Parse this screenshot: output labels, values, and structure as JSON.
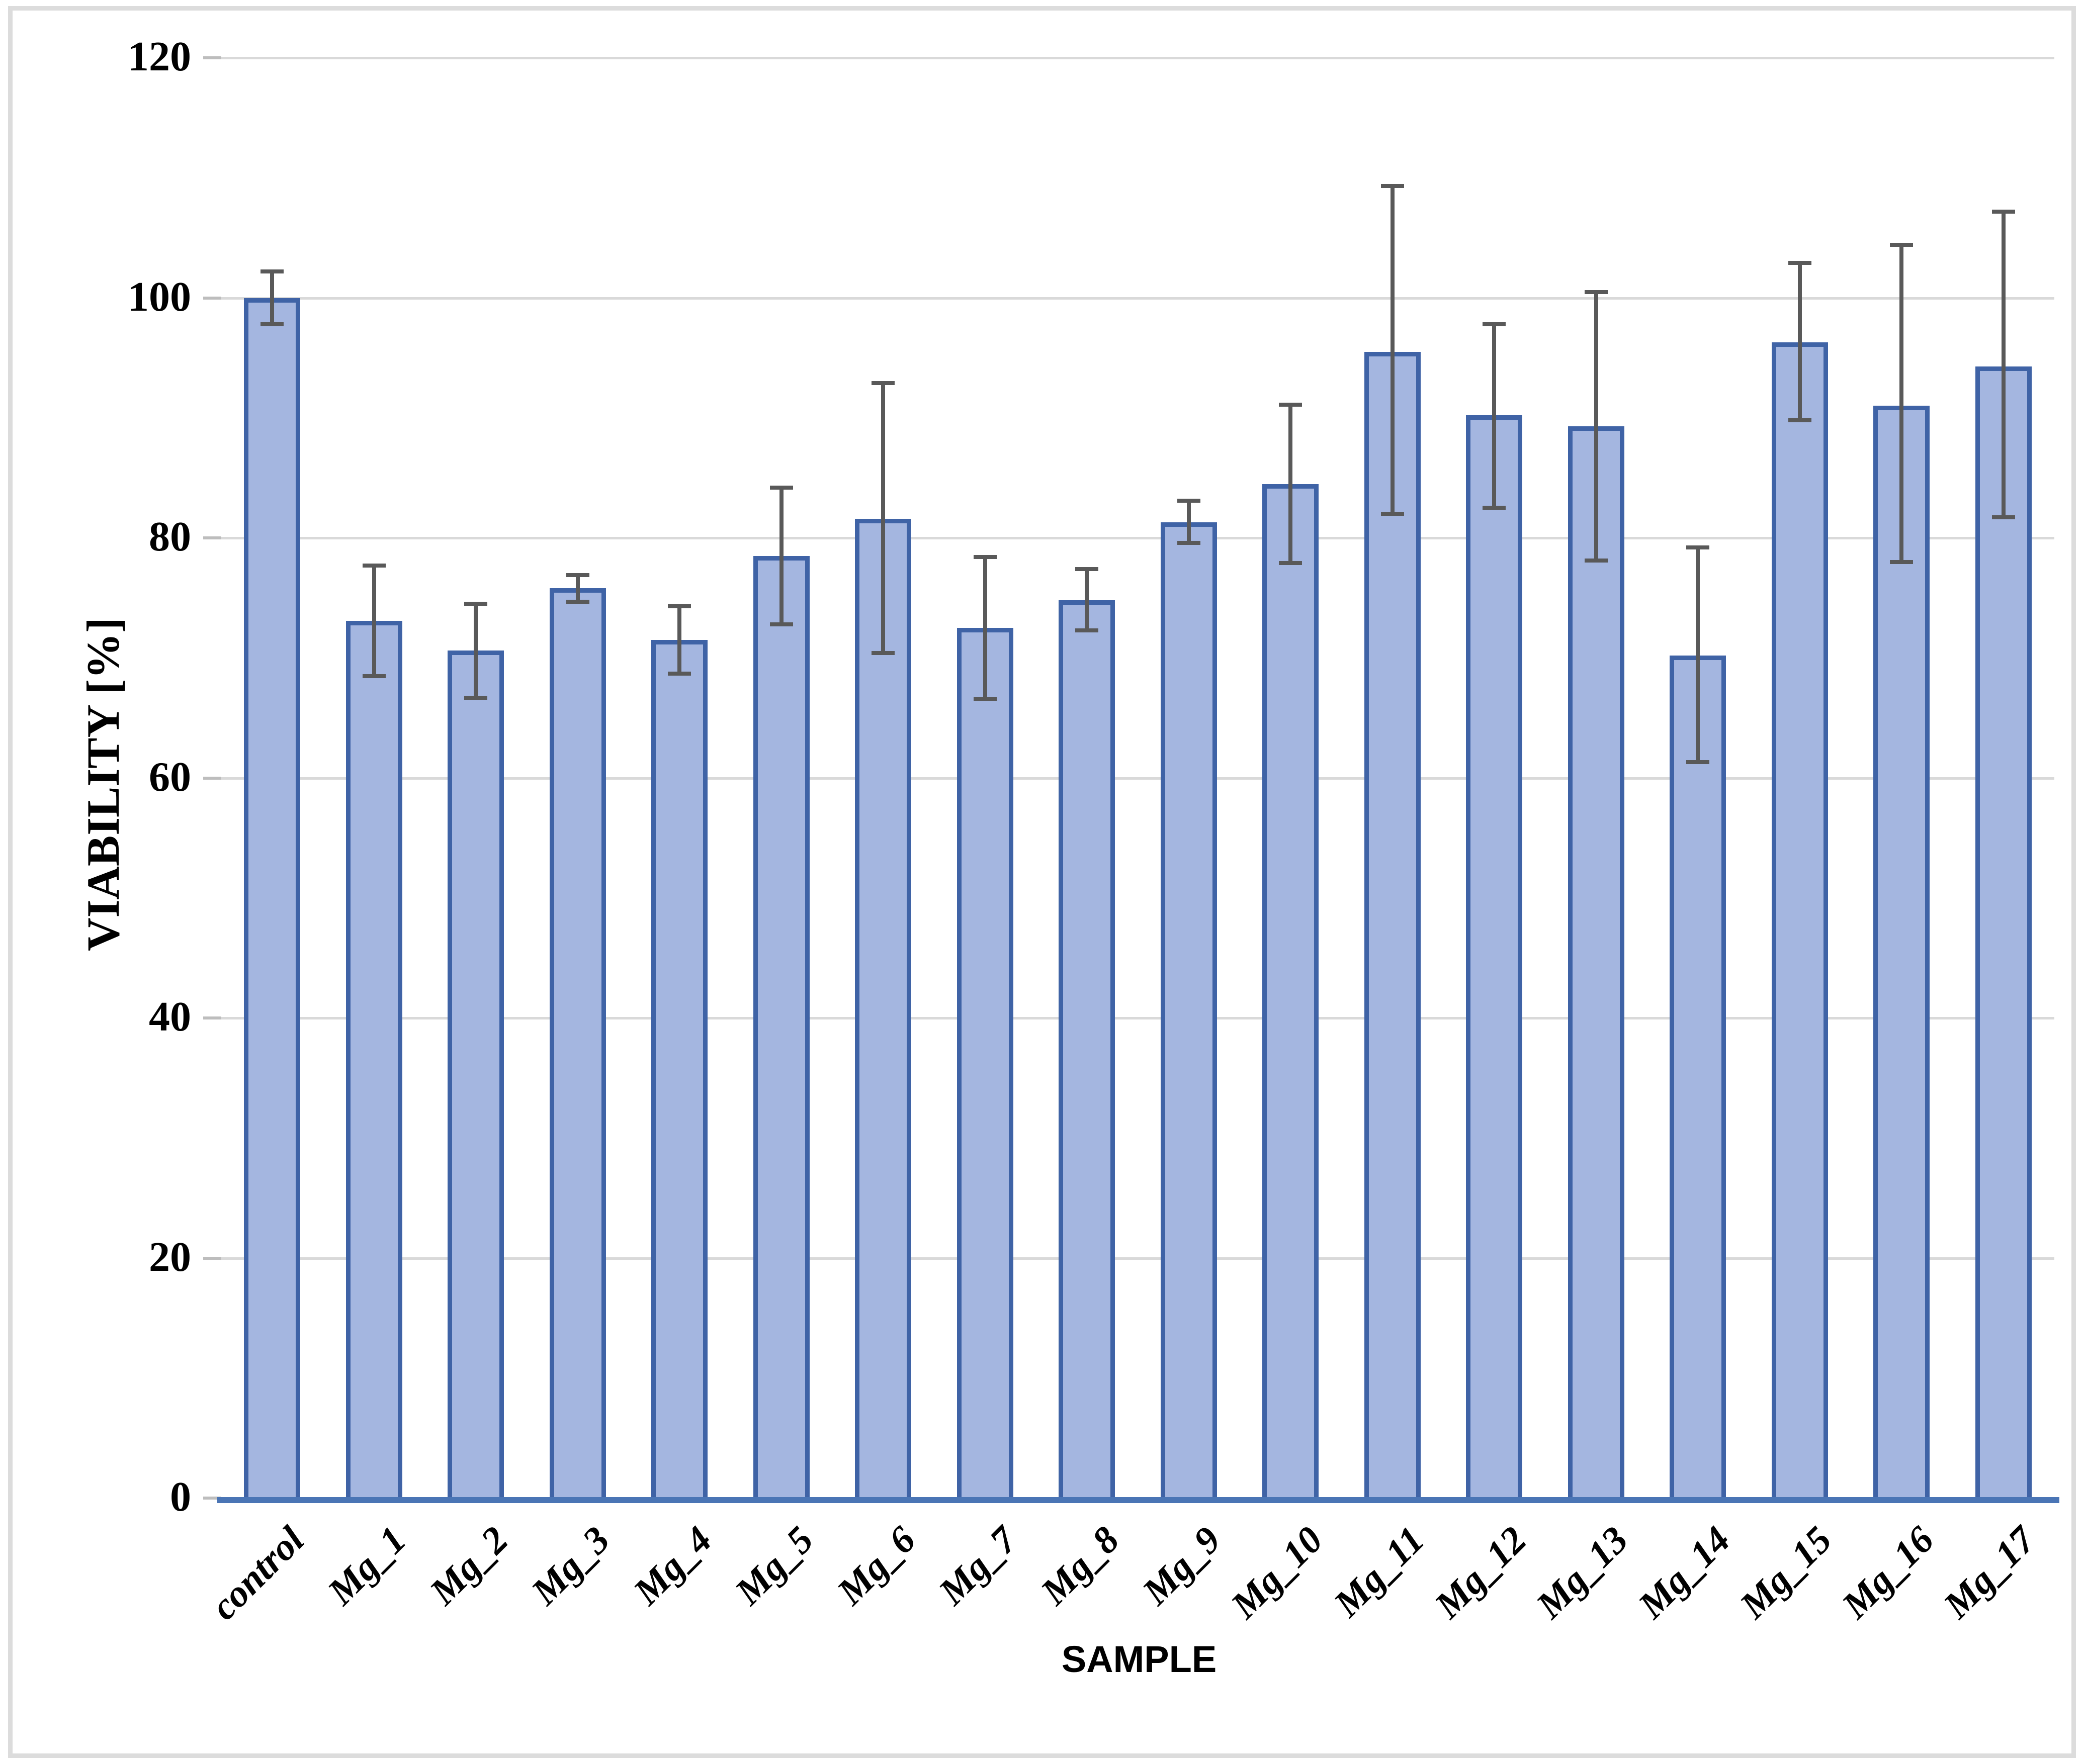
{
  "chart_data": {
    "type": "bar",
    "title": "",
    "xlabel": "SAMPLE",
    "ylabel": "VIABILITY [%]",
    "ylim": [
      0,
      120
    ],
    "yticks": [
      0,
      20,
      40,
      60,
      80,
      100,
      120
    ],
    "grid": true,
    "legend": "none",
    "categories": [
      "control",
      "Mg_1",
      "Mg_2",
      "Mg_3",
      "Mg_4",
      "Mg_5",
      "Mg_6",
      "Mg_7",
      "Mg_8",
      "Mg_9",
      "Mg_10",
      "Mg_11",
      "Mg_12",
      "Mg_13",
      "Mg_14",
      "Mg_15",
      "Mg_16",
      "Mg_17"
    ],
    "values": [
      100.0,
      73.1,
      70.6,
      75.8,
      71.5,
      78.5,
      81.6,
      72.5,
      74.8,
      81.3,
      84.5,
      95.5,
      90.2,
      89.3,
      70.2,
      96.3,
      91.0,
      94.3
    ],
    "err_up": [
      2.2,
      4.6,
      3.9,
      1.1,
      2.8,
      5.7,
      11.3,
      5.9,
      2.6,
      1.8,
      6.6,
      13.8,
      7.6,
      11.2,
      9.0,
      6.6,
      13.4,
      12.9
    ],
    "err_down": [
      2.2,
      4.6,
      3.9,
      1.1,
      2.8,
      5.7,
      11.2,
      5.9,
      2.5,
      1.7,
      6.6,
      13.5,
      7.7,
      11.2,
      8.9,
      6.5,
      13.0,
      12.6
    ],
    "colors": {
      "bar_fill": "#a4b6e0",
      "bar_border": "#3f63a6",
      "error_bar": "#595959",
      "gridline": "#d9d9d9",
      "axis_line": "#4a75b5",
      "tick": "#bdbdbd",
      "text": "#000000",
      "frame_border": "#dcdcdc"
    }
  }
}
